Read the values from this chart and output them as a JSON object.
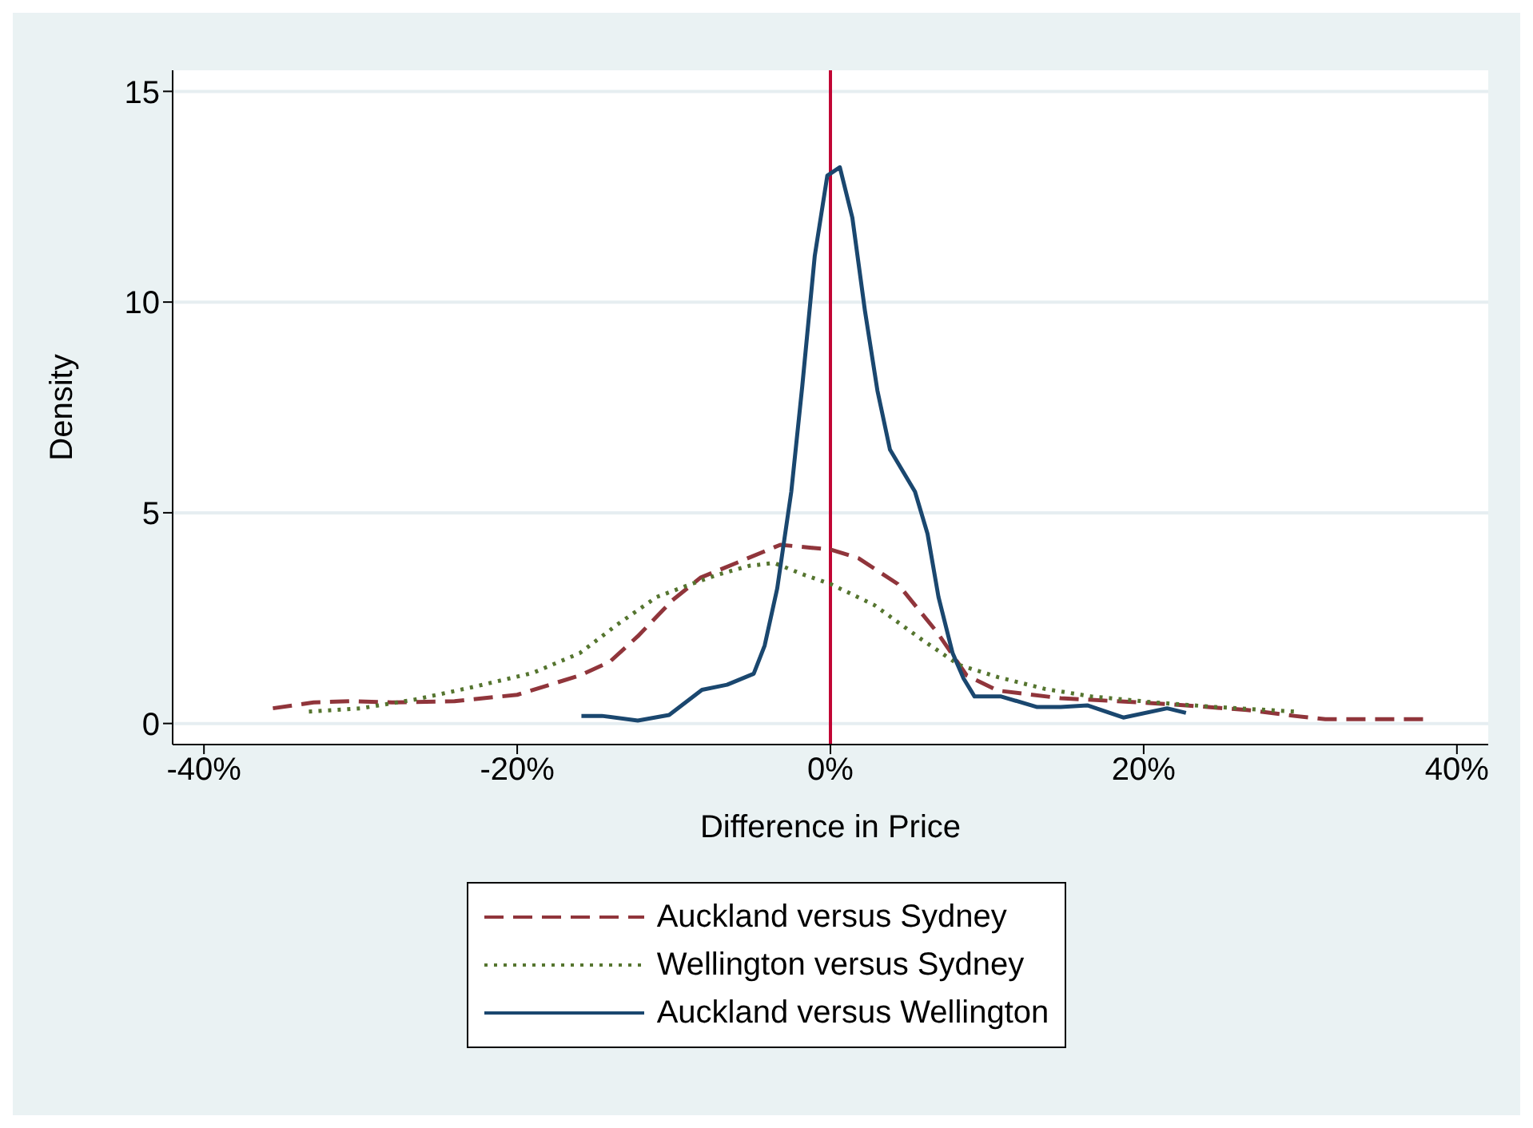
{
  "chart_data": {
    "type": "line",
    "xlabel": "Difference in Price",
    "ylabel": "Density",
    "xlim": [
      -42,
      42
    ],
    "xticks": [
      {
        "value": -40,
        "label": "-40%"
      },
      {
        "value": -20,
        "label": "-20%"
      },
      {
        "value": 0,
        "label": "0%"
      },
      {
        "value": 20,
        "label": "20%"
      },
      {
        "value": 40,
        "label": "40%"
      }
    ],
    "ylim": [
      -0.5,
      15.5
    ],
    "yticks": [
      0,
      5,
      10,
      15
    ],
    "grid": "y",
    "legend": "bottom",
    "marker": "none",
    "ref_lines": [
      {
        "axis": "x",
        "value": 0,
        "color": "#c10534"
      }
    ],
    "series": [
      {
        "name": "Auckland versus Sydney",
        "color": "#90353b",
        "line_style": "dashed",
        "x": [
          -35.6,
          -33,
          -30.5,
          -28,
          -24,
          -20,
          -16,
          -14.1,
          -12.3,
          -10.1,
          -8.3,
          -6.2,
          -3.2,
          -1.2,
          0,
          1.8,
          4.3,
          6.8,
          8.7,
          10.7,
          14.7,
          19.7,
          22.7,
          26.6,
          29.6,
          31.6,
          34.6,
          38.1
        ],
        "values": [
          0.36,
          0.5,
          0.53,
          0.5,
          0.53,
          0.68,
          1.14,
          1.46,
          2.07,
          2.92,
          3.46,
          3.78,
          4.24,
          4.17,
          4.13,
          3.92,
          3.31,
          2.17,
          1.14,
          0.78,
          0.6,
          0.5,
          0.43,
          0.32,
          0.18,
          0.1,
          0.1,
          0.1
        ]
      },
      {
        "name": "Wellington versus Sydney",
        "color": "#55752f",
        "line_style": "dotted",
        "x": [
          -33.3,
          -30,
          -26.5,
          -23,
          -19,
          -16,
          -13.6,
          -11.1,
          -9.1,
          -7.2,
          -5.2,
          -3.6,
          -1.7,
          0,
          2.8,
          5.8,
          8.2,
          10.7,
          13.7,
          16.7,
          20.7,
          24.6,
          29.8
        ],
        "values": [
          0.28,
          0.36,
          0.57,
          0.85,
          1.2,
          1.67,
          2.35,
          3.0,
          3.28,
          3.53,
          3.74,
          3.81,
          3.53,
          3.31,
          2.81,
          2.0,
          1.39,
          1.1,
          0.82,
          0.64,
          0.5,
          0.39,
          0.28
        ]
      },
      {
        "name": "Auckland versus Wellington",
        "color": "#1a476f",
        "line_style": "solid",
        "x": [
          -15.9,
          -14.6,
          -12.3,
          -10.3,
          -8.2,
          -6.6,
          -4.9,
          -4.2,
          -3.4,
          -2.5,
          -1.8,
          -1.0,
          -0.2,
          0.6,
          1.4,
          2.2,
          3.0,
          3.8,
          5.4,
          6.2,
          6.9,
          7.8,
          8.5,
          9.2,
          10.9,
          13.2,
          14.7,
          16.4,
          18.7,
          21.5,
          22.7
        ],
        "values": [
          0.18,
          0.18,
          0.07,
          0.2,
          0.8,
          0.92,
          1.18,
          1.85,
          3.2,
          5.5,
          8.0,
          11.1,
          13.0,
          13.2,
          12.0,
          9.8,
          7.9,
          6.5,
          5.5,
          4.5,
          3.0,
          1.67,
          1.07,
          0.64,
          0.64,
          0.39,
          0.39,
          0.43,
          0.14,
          0.36,
          0.25
        ]
      }
    ]
  }
}
